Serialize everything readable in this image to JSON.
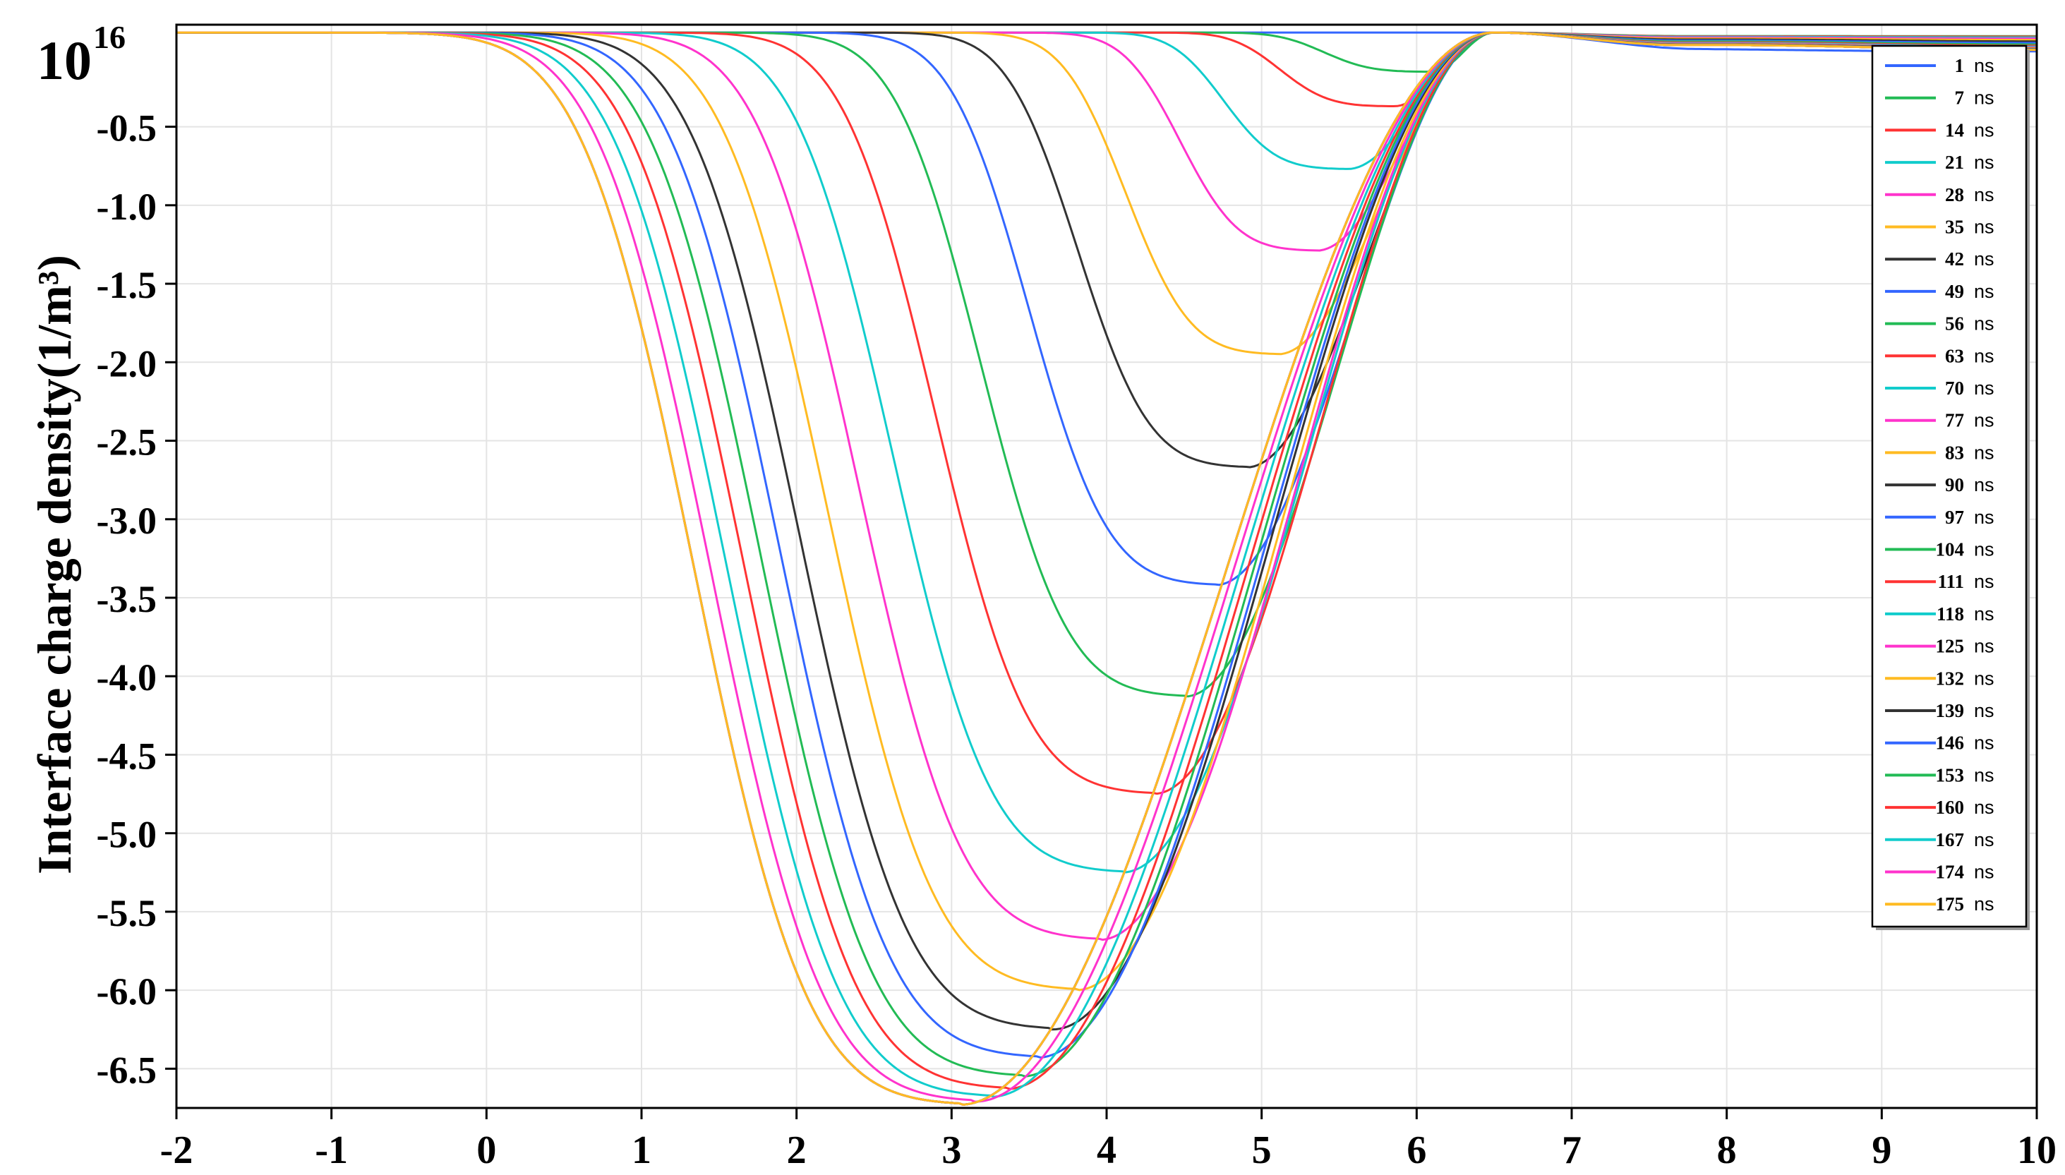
{
  "chart_data": {
    "type": "line",
    "title": "",
    "xlabel": "",
    "ylabel": "Interface charge density(1/m³)",
    "scale_multiplier": "10",
    "scale_exponent": "16",
    "xlim": [
      -2,
      10
    ],
    "ylim": [
      -6.75,
      0.15
    ],
    "x_ticks": [
      "-2",
      "-1",
      "0",
      "1",
      "2",
      "3",
      "4",
      "5",
      "6",
      "7",
      "8",
      "9",
      "10"
    ],
    "y_ticks": [
      {
        "value": -0.5,
        "label": "-0.5"
      },
      {
        "value": -1.0,
        "label": "-1.0"
      },
      {
        "value": -1.5,
        "label": "-1.5"
      },
      {
        "value": -2.0,
        "label": "-2.0"
      },
      {
        "value": -2.5,
        "label": "-2.5"
      },
      {
        "value": -3.0,
        "label": "-3.0"
      },
      {
        "value": -3.5,
        "label": "-3.5"
      },
      {
        "value": -4.0,
        "label": "-4.0"
      },
      {
        "value": -4.5,
        "label": "-4.5"
      },
      {
        "value": -5.0,
        "label": "-5.0"
      },
      {
        "value": -5.5,
        "label": "-5.5"
      },
      {
        "value": -6.0,
        "label": "-6.0"
      },
      {
        "value": -6.5,
        "label": "-6.5"
      }
    ],
    "grid": true,
    "legend_position": "top-right",
    "legend_unit": "ns",
    "series": [
      {
        "name": "1",
        "color": "#3366ff",
        "min_x": 9.6,
        "min_y": -0.02
      },
      {
        "name": "7",
        "color": "#22bb55",
        "min_x": 6.1,
        "min_y": -0.15
      },
      {
        "name": "14",
        "color": "#ff3333",
        "min_x": 5.85,
        "min_y": -0.37
      },
      {
        "name": "21",
        "color": "#11cccc",
        "min_x": 5.55,
        "min_y": -0.77
      },
      {
        "name": "28",
        "color": "#ff33cc",
        "min_x": 5.35,
        "min_y": -1.29
      },
      {
        "name": "35",
        "color": "#ffbb22",
        "min_x": 5.1,
        "min_y": -1.95
      },
      {
        "name": "42",
        "color": "#333333",
        "min_x": 4.9,
        "min_y": -2.67
      },
      {
        "name": "49",
        "color": "#3366ff",
        "min_x": 4.7,
        "min_y": -3.42
      },
      {
        "name": "56",
        "color": "#22bb55",
        "min_x": 4.5,
        "min_y": -4.13
      },
      {
        "name": "63",
        "color": "#ff3333",
        "min_x": 4.3,
        "min_y": -4.75
      },
      {
        "name": "70",
        "color": "#11cccc",
        "min_x": 4.1,
        "min_y": -5.25
      },
      {
        "name": "77",
        "color": "#ff33cc",
        "min_x": 3.95,
        "min_y": -5.68
      },
      {
        "name": "83",
        "color": "#ffbb22",
        "min_x": 3.8,
        "min_y": -6.0
      },
      {
        "name": "90",
        "color": "#333333",
        "min_x": 3.65,
        "min_y": -6.25
      },
      {
        "name": "97",
        "color": "#3366ff",
        "min_x": 3.55,
        "min_y": -6.43
      },
      {
        "name": "104",
        "color": "#22bb55",
        "min_x": 3.45,
        "min_y": -6.55
      },
      {
        "name": "111",
        "color": "#ff3333",
        "min_x": 3.35,
        "min_y": -6.63
      },
      {
        "name": "118",
        "color": "#11cccc",
        "min_x": 3.25,
        "min_y": -6.68
      },
      {
        "name": "125",
        "color": "#ff33cc",
        "min_x": 3.15,
        "min_y": -6.71
      },
      {
        "name": "132",
        "color": "#ffbb22",
        "min_x": 3.05,
        "min_y": -6.73
      },
      {
        "name": "139",
        "color": "#333333",
        "min_x": 3.05,
        "min_y": -6.73
      },
      {
        "name": "146",
        "color": "#3366ff",
        "min_x": 3.05,
        "min_y": -6.73
      },
      {
        "name": "153",
        "color": "#22bb55",
        "min_x": 3.05,
        "min_y": -6.73
      },
      {
        "name": "160",
        "color": "#ff3333",
        "min_x": 3.05,
        "min_y": -6.73
      },
      {
        "name": "167",
        "color": "#11cccc",
        "min_x": 3.05,
        "min_y": -6.73
      },
      {
        "name": "174",
        "color": "#ff33cc",
        "min_x": 3.05,
        "min_y": -6.73
      },
      {
        "name": "175",
        "color": "#ffbb22",
        "min_x": 3.05,
        "min_y": -6.73
      }
    ]
  }
}
